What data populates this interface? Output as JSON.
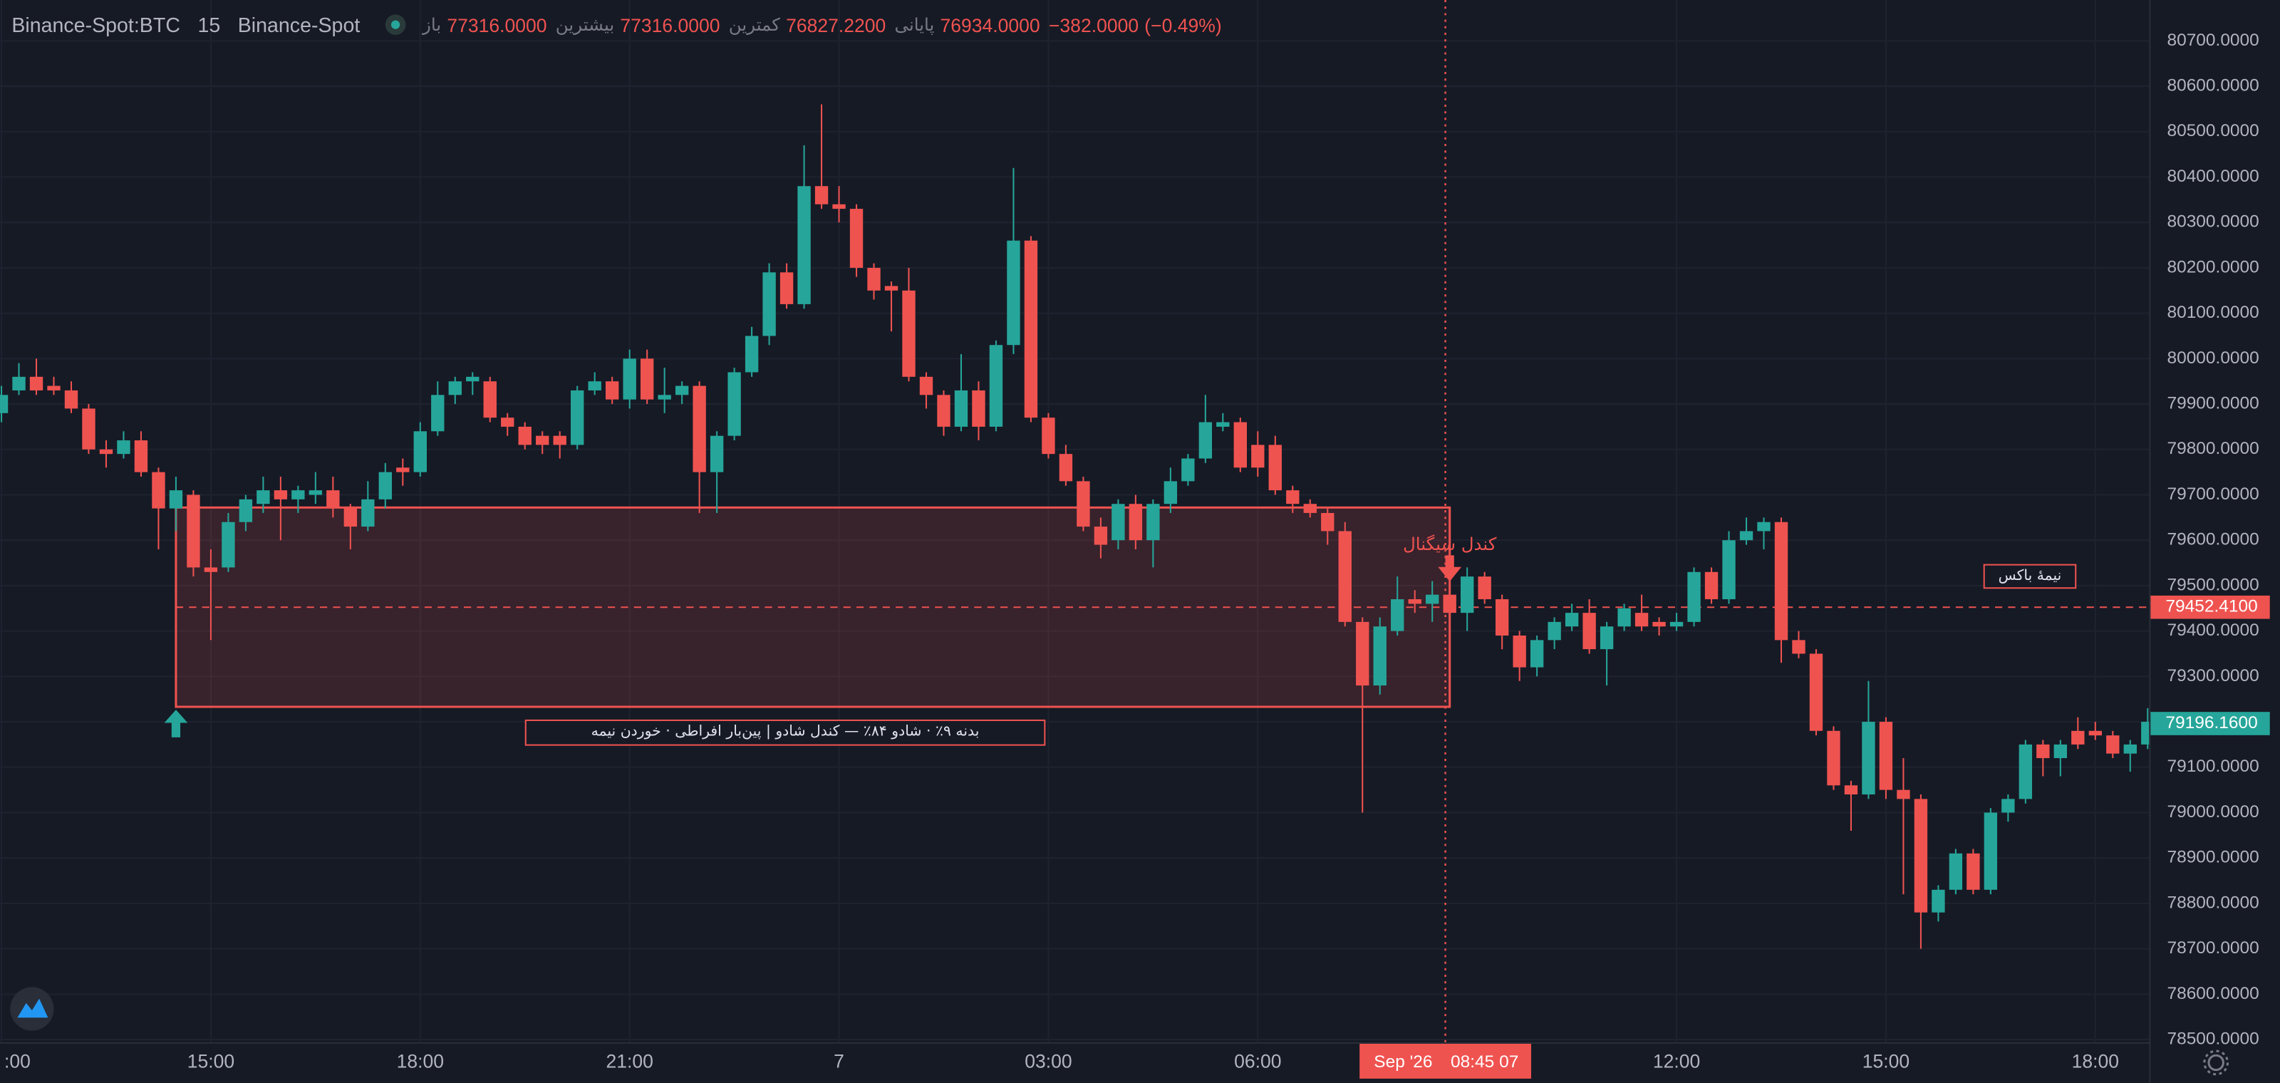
{
  "chart_data": {
    "type": "candlestick",
    "symbol": "Binance-Spot:BTC",
    "interval": "15",
    "exchange": "Binance-Spot",
    "ohlc_legend": [
      {
        "label": "باز",
        "value": "77316.0000"
      },
      {
        "label": "بیشترین",
        "value": "77316.0000"
      },
      {
        "label": "کمترین",
        "value": "76827.2200"
      },
      {
        "label": "پایانی",
        "value": "76934.0000"
      }
    ],
    "change": "−382.0000",
    "change_percent": "(−0.49%)",
    "up_color": "#26a69a",
    "down_color": "#ef5350",
    "categories": [
      ":00",
      null,
      null,
      null,
      null,
      null,
      null,
      null,
      null,
      null,
      null,
      null,
      "15:00",
      null,
      null,
      null,
      null,
      null,
      null,
      null,
      null,
      null,
      null,
      null,
      "18:00",
      null,
      null,
      null,
      null,
      null,
      null,
      null,
      null,
      null,
      null,
      null,
      "21:00",
      null,
      null,
      null,
      null,
      null,
      null,
      null,
      null,
      null,
      null,
      null,
      "7",
      null,
      null,
      null,
      null,
      null,
      null,
      null,
      null,
      null,
      null,
      null,
      "03:00",
      null,
      null,
      null,
      null,
      null,
      null,
      null,
      null,
      null,
      null,
      null,
      "06:00",
      null,
      null,
      null,
      null,
      null,
      null,
      null,
      null,
      null,
      null,
      null,
      null,
      null,
      null,
      null,
      null,
      null,
      null,
      null,
      null,
      null,
      null,
      null,
      "12:00",
      null,
      null,
      null,
      null,
      null,
      null,
      null,
      null,
      null,
      null,
      null,
      "15:00",
      null,
      null,
      null,
      null,
      null,
      null,
      null,
      null,
      null,
      null,
      null,
      "18:00",
      null,
      null,
      null
    ],
    "open": [
      79880,
      79930,
      79960,
      79940,
      79930,
      79890,
      79800,
      79790,
      79820,
      79750,
      79670,
      79700,
      79540,
      79540,
      79640,
      79680,
      79710,
      79690,
      79700,
      79710,
      79670,
      79630,
      79690,
      79760,
      79750,
      79840,
      79920,
      79950,
      79950,
      79870,
      79850,
      79830,
      79830,
      79810,
      79930,
      79950,
      79910,
      80000,
      79910,
      79920,
      79940,
      79750,
      79830,
      79970,
      80050,
      80190,
      80120,
      80380,
      80340,
      80330,
      80200,
      80160,
      80150,
      79960,
      79920,
      79850,
      79930,
      79850,
      80030,
      80260,
      79870,
      79790,
      79730,
      79630,
      79600,
      79680,
      79600,
      79680,
      79730,
      79780,
      79850,
      79860,
      79810,
      79810,
      79710,
      79680,
      79660,
      79620,
      79420,
      79280,
      79400,
      79470,
      79460,
      79480,
      79440,
      79520,
      79470,
      79390,
      79320,
      79380,
      79410,
      79440,
      79360,
      79410,
      79440,
      79420,
      79410,
      79420,
      79530,
      79470,
      79600,
      79620,
      79640,
      79380,
      79350,
      79180,
      79060,
      79040,
      79200,
      79050,
      79030,
      78780,
      78830,
      78910,
      78830,
      79000,
      79030,
      79150,
      79120,
      79180,
      79180,
      79170,
      79130,
      79150
    ],
    "high": [
      79940,
      79990,
      80000,
      79960,
      79950,
      79900,
      79820,
      79840,
      79840,
      79760,
      79740,
      79710,
      79580,
      79660,
      79700,
      79740,
      79740,
      79720,
      79750,
      79740,
      79680,
      79730,
      79770,
      79780,
      79860,
      79950,
      79960,
      79970,
      79960,
      79880,
      79860,
      79840,
      79840,
      79940,
      79970,
      79960,
      80020,
      80020,
      79980,
      79950,
      79950,
      79840,
      79980,
      80070,
      80210,
      80210,
      80470,
      80560,
      80380,
      80340,
      80210,
      80170,
      80200,
      79970,
      79930,
      80010,
      79950,
      80040,
      80420,
      80270,
      79880,
      79810,
      79740,
      79650,
      79690,
      79700,
      79690,
      79760,
      79790,
      79920,
      79880,
      79870,
      79840,
      79830,
      79720,
      79690,
      79670,
      79640,
      79430,
      79430,
      79520,
      79490,
      79510,
      79510,
      79540,
      79530,
      79480,
      79400,
      79390,
      79430,
      79460,
      79470,
      79420,
      79460,
      79480,
      79430,
      79440,
      79540,
      79540,
      79620,
      79650,
      79650,
      79650,
      79400,
      79360,
      79190,
      79070,
      79290,
      79210,
      79120,
      79040,
      78840,
      78920,
      78920,
      79010,
      79040,
      79160,
      79160,
      79160,
      79210,
      79200,
      79180,
      79160,
      79230
    ],
    "low": [
      79860,
      79920,
      79920,
      79920,
      79880,
      79790,
      79760,
      79780,
      79740,
      79580,
      79620,
      79520,
      79380,
      79530,
      79620,
      79660,
      79600,
      79660,
      79680,
      79650,
      79580,
      79620,
      79670,
      79720,
      79740,
      79830,
      79900,
      79920,
      79860,
      79830,
      79800,
      79790,
      79780,
      79800,
      79920,
      79900,
      79890,
      79900,
      79880,
      79900,
      79660,
      79660,
      79820,
      79960,
      80030,
      80110,
      80110,
      80330,
      80300,
      80180,
      80130,
      80060,
      79950,
      79890,
      79830,
      79840,
      79820,
      79840,
      80010,
      79860,
      79780,
      79720,
      79620,
      79560,
      79580,
      79580,
      79540,
      79660,
      79720,
      79770,
      79840,
      79750,
      79740,
      79700,
      79660,
      79650,
      79590,
      79410,
      79000,
      79260,
      79390,
      79440,
      79420,
      79420,
      79400,
      79460,
      79360,
      79290,
      79300,
      79360,
      79400,
      79350,
      79280,
      79400,
      79400,
      79390,
      79400,
      79410,
      79460,
      79460,
      79590,
      79580,
      79330,
      79340,
      79170,
      79050,
      78960,
      79030,
      79030,
      78820,
      78700,
      78760,
      78820,
      78820,
      78820,
      78980,
      79020,
      79080,
      79080,
      79140,
      79160,
      79120,
      79090,
      79140
    ],
    "close": [
      79920,
      79960,
      79930,
      79930,
      79890,
      79800,
      79790,
      79820,
      79750,
      79670,
      79710,
      79540,
      79530,
      79640,
      79690,
      79710,
      79690,
      79710,
      79710,
      79670,
      79630,
      79690,
      79750,
      79750,
      79840,
      79920,
      79950,
      79960,
      79870,
      79850,
      79810,
      79810,
      79810,
      79930,
      79950,
      79910,
      80000,
      79910,
      79920,
      79940,
      79750,
      79830,
      79970,
      80050,
      80190,
      80120,
      80380,
      80340,
      80330,
      80200,
      80150,
      80150,
      79960,
      79920,
      79850,
      79930,
      79850,
      80030,
      80260,
      79870,
      79790,
      79730,
      79630,
      79590,
      79680,
      79600,
      79680,
      79730,
      79780,
      79860,
      79860,
      79760,
      79760,
      79710,
      79680,
      79660,
      79620,
      79420,
      79280,
      79410,
      79470,
      79460,
      79480,
      79440,
      79520,
      79470,
      79390,
      79320,
      79380,
      79420,
      79440,
      79360,
      79410,
      79450,
      79410,
      79410,
      79420,
      79530,
      79470,
      79600,
      79620,
      79640,
      79380,
      79350,
      79180,
      79060,
      79040,
      79200,
      79050,
      79030,
      78780,
      78830,
      78910,
      78830,
      79000,
      79030,
      79150,
      79120,
      79150,
      79150,
      79170,
      79130,
      79150,
      79200
    ],
    "ylim": [
      78494,
      80790
    ],
    "yticks": [
      {
        "value": 78500,
        "label": "78500.0000"
      },
      {
        "value": 78600,
        "label": "78600.0000"
      },
      {
        "value": 78700,
        "label": "78700.0000"
      },
      {
        "value": 78800,
        "label": "78800.0000"
      },
      {
        "value": 78900,
        "label": "78900.0000"
      },
      {
        "value": 79000,
        "label": "79000.0000"
      },
      {
        "value": 79100,
        "label": "79100.0000"
      },
      {
        "value": 79200,
        "label": "79200.0000"
      },
      {
        "value": 79300,
        "label": "79300.0000"
      },
      {
        "value": 79400,
        "label": "79400.0000"
      },
      {
        "value": 79500,
        "label": "79500.0000"
      },
      {
        "value": 79600,
        "label": "79600.0000"
      },
      {
        "value": 79700,
        "label": "79700.0000"
      },
      {
        "value": 79800,
        "label": "79800.0000"
      },
      {
        "value": 79900,
        "label": "79900.0000"
      },
      {
        "value": 80000,
        "label": "80000.0000"
      },
      {
        "value": 80100,
        "label": "80100.0000"
      },
      {
        "value": 80200,
        "label": "80200.0000"
      },
      {
        "value": 80300,
        "label": "80300.0000"
      },
      {
        "value": 80400,
        "label": "80400.0000"
      },
      {
        "value": 80500,
        "label": "80500.0000"
      },
      {
        "value": 80600,
        "label": "80600.0000"
      },
      {
        "value": 80700,
        "label": "80700.0000"
      }
    ],
    "grid": true,
    "zone": {
      "top": 79672,
      "bottom": 79233,
      "from": 10,
      "to": 83,
      "label": "بدنه ۹٪ · شادو ۸۴٪ — کندل شادو | پین‌بار افراطی · خوردن نیمه"
    },
    "signal_label": "کندل سیگنال",
    "mid_label": "نیمهٔ باکس",
    "mid_price": {
      "value": 79452.41,
      "label": "79452.4100"
    },
    "last_price": {
      "value": 79196.16,
      "label": "79196.1600"
    },
    "crosshair_date": "Sep '26",
    "crosshair_time": "08:45 07"
  }
}
